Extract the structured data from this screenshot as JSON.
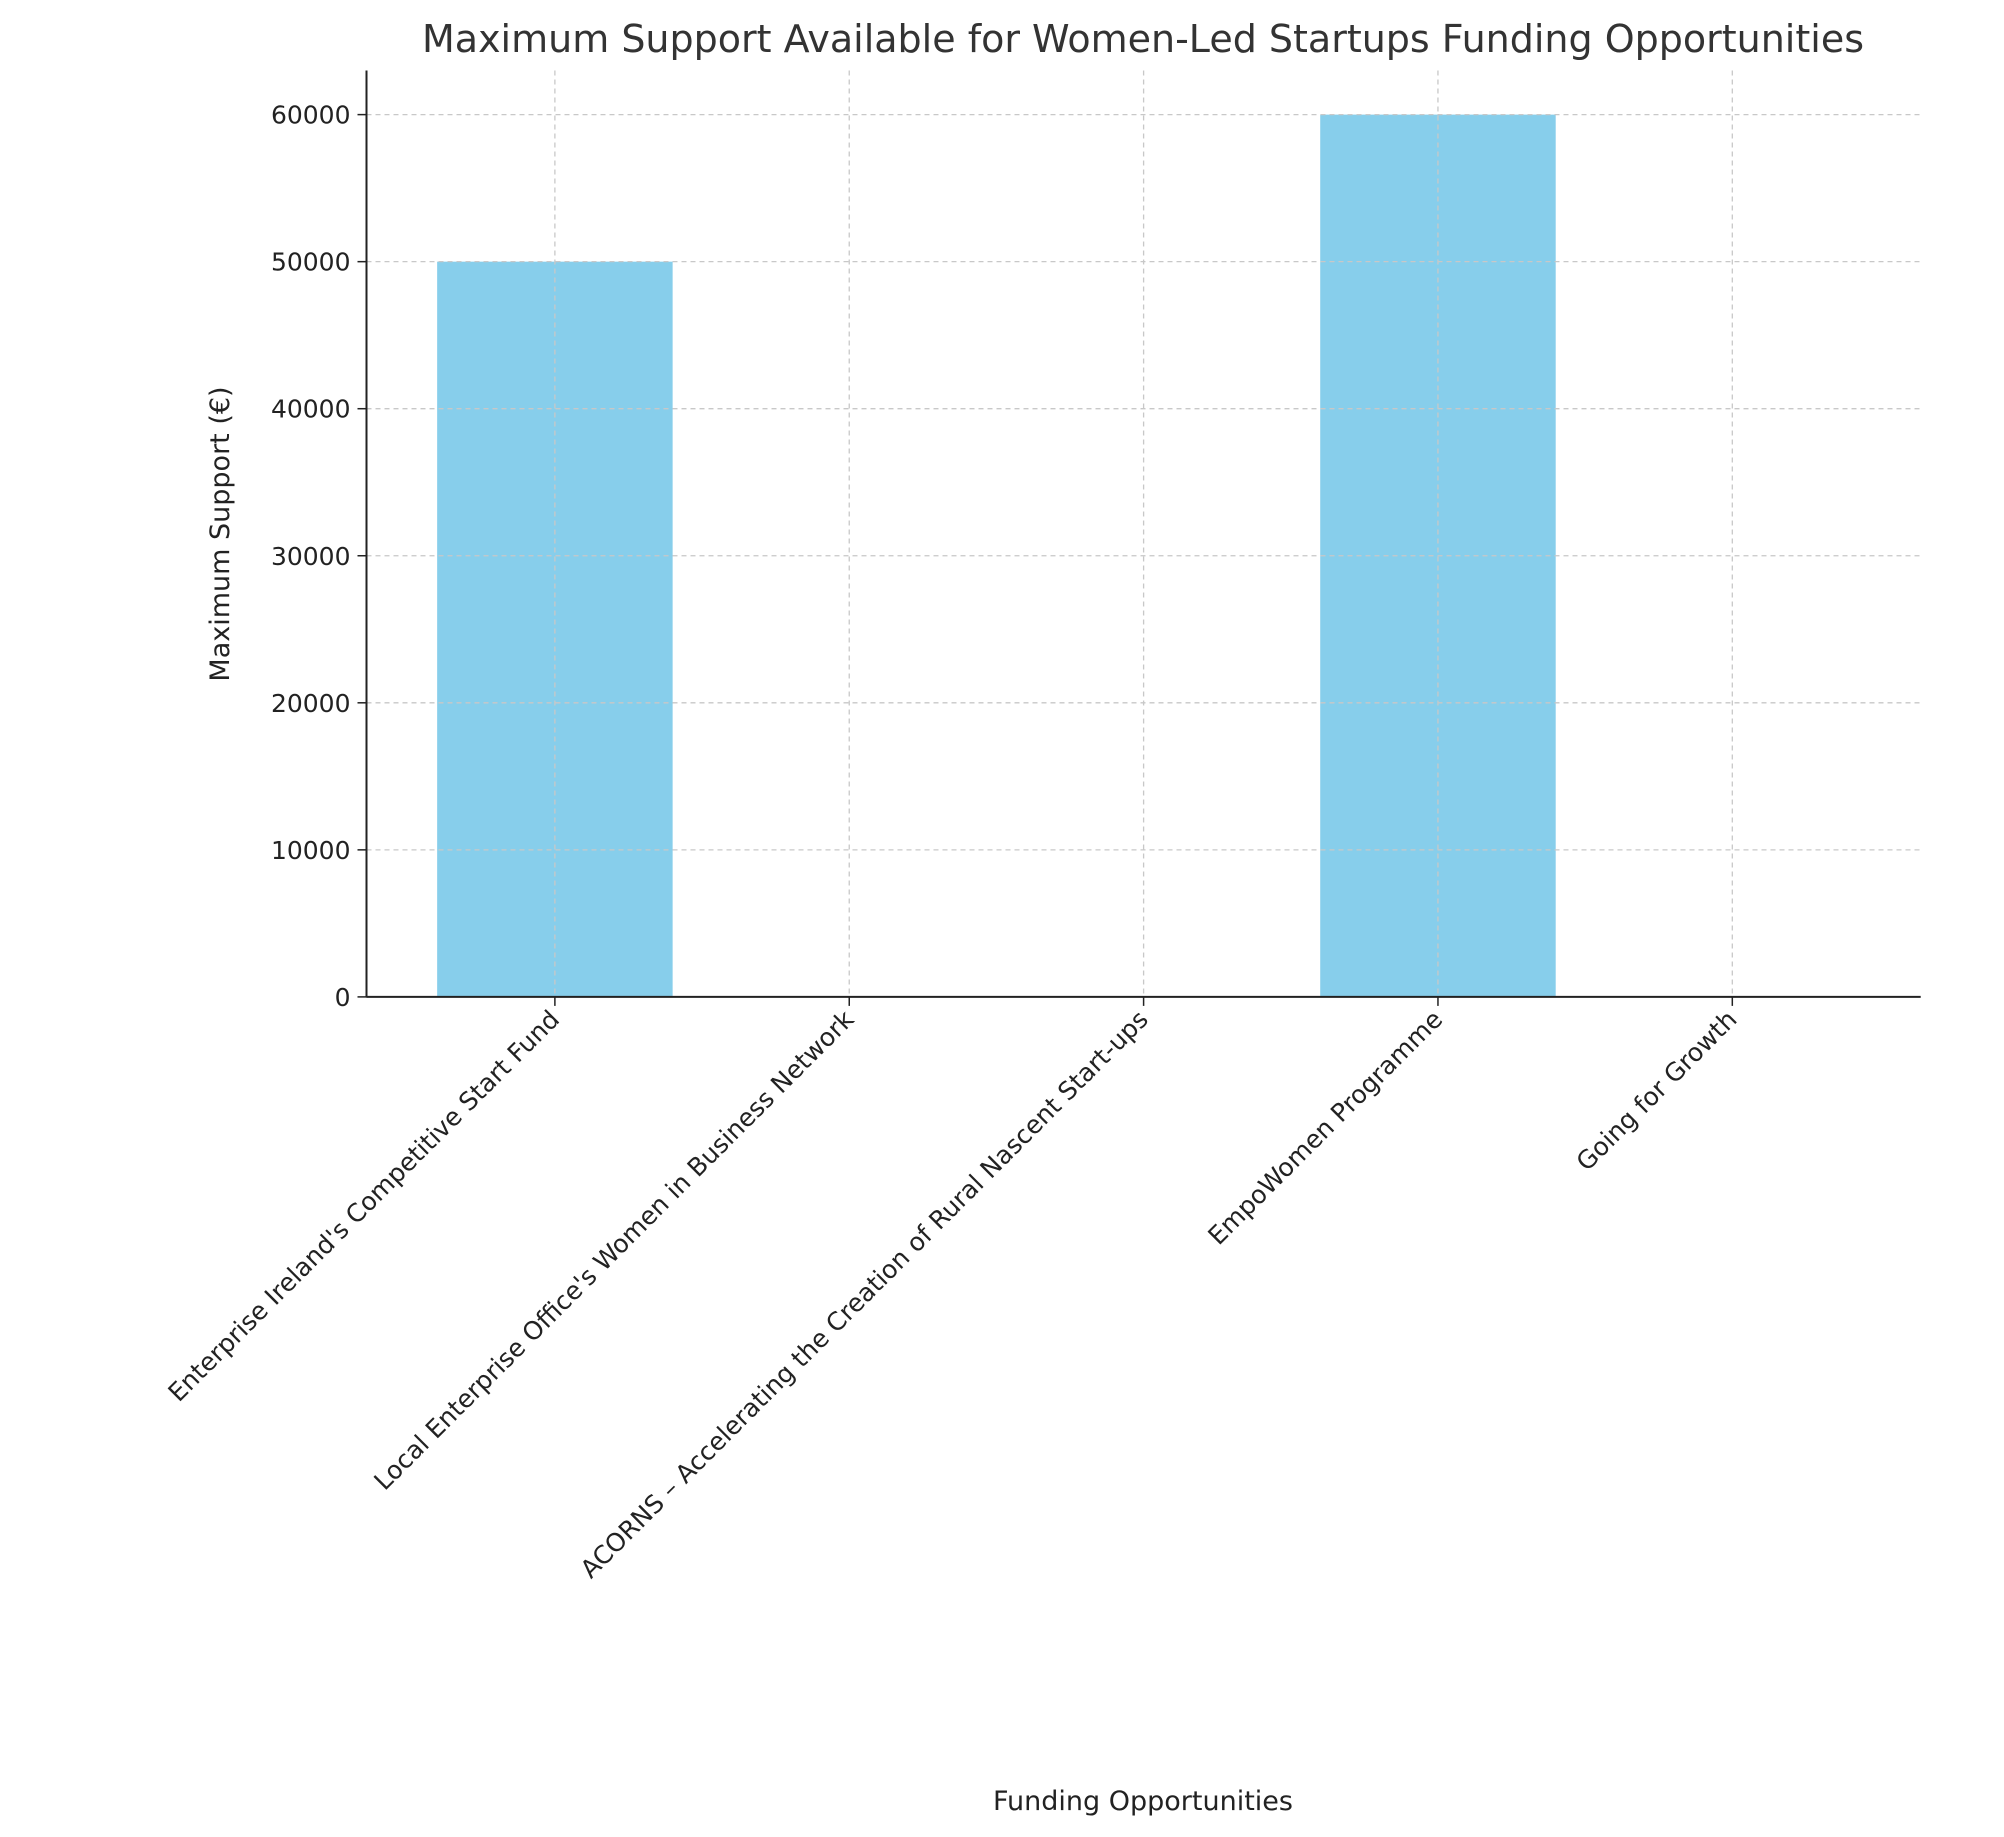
{
  "chart_data": {
    "type": "bar",
    "title": "Maximum Support Available for Women-Led Startups Funding Opportunities",
    "x_label": "Funding Opportunities",
    "y_label": "Maximum Support (€)",
    "categories": [
      "Enterprise Ireland's Competitive Start Fund",
      "Local Enterprise Office's Women in Business Network",
      "ACORNS – Accelerating the Creation of Rural Nascent Start-ups",
      "EmpoWomen Programme",
      "Going for Growth"
    ],
    "values": [
      50000,
      0,
      0,
      60000,
      0
    ],
    "color": "#87ceeb",
    "ylim": [
      0,
      63000
    ],
    "yticks": [
      0,
      10000,
      20000,
      30000,
      40000,
      50000,
      60000
    ],
    "grid": true
  }
}
